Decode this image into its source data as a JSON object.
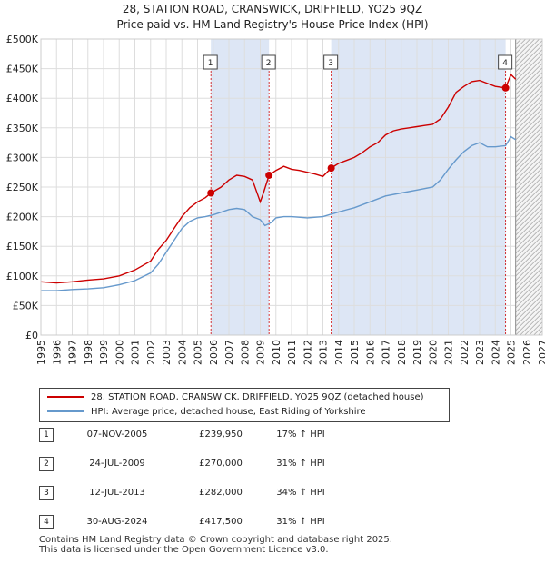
{
  "title_line1": "28, STATION ROAD, CRANSWICK, DRIFFIELD, YO25 9QZ",
  "title_line2": "Price paid vs. HM Land Registry's House Price Index (HPI)",
  "colors": {
    "property": "#cc0000",
    "hpi": "#6699cc",
    "sale_band": "#dde6f5",
    "future_hatch": "#aaaaaa",
    "grid": "#dddddd"
  },
  "legend": {
    "property_label": "28, STATION ROAD, CRANSWICK, DRIFFIELD, YO25 9QZ (detached house)",
    "hpi_label": "HPI: Average price, detached house, East Riding of Yorkshire"
  },
  "sales": [
    {
      "num": "1",
      "date": "07-NOV-2005",
      "price": "£239,950",
      "hpi": "17% ↑ HPI"
    },
    {
      "num": "2",
      "date": "24-JUL-2009",
      "price": "£270,000",
      "hpi": "31% ↑ HPI"
    },
    {
      "num": "3",
      "date": "12-JUL-2013",
      "price": "£282,000",
      "hpi": "34% ↑ HPI"
    },
    {
      "num": "4",
      "date": "30-AUG-2024",
      "price": "£417,500",
      "hpi": "31% ↑ HPI"
    }
  ],
  "footer_line1": "Contains HM Land Registry data © Crown copyright and database right 2025.",
  "footer_line2": "This data is licensed under the Open Government Licence v3.0.",
  "chart_data": {
    "type": "line",
    "title": "Price paid vs. HM Land Registry's House Price Index (HPI)",
    "xlim": [
      1995,
      2027
    ],
    "ylim": [
      0,
      500000
    ],
    "x_ticks": [
      1995,
      1996,
      1997,
      1998,
      1999,
      2000,
      2001,
      2002,
      2003,
      2004,
      2005,
      2006,
      2007,
      2008,
      2009,
      2010,
      2011,
      2012,
      2013,
      2014,
      2015,
      2016,
      2017,
      2018,
      2019,
      2020,
      2021,
      2022,
      2023,
      2024,
      2025,
      2026,
      2027
    ],
    "y_ticks": [
      {
        "value": 0,
        "label": "£0"
      },
      {
        "value": 50000,
        "label": "£50K"
      },
      {
        "value": 100000,
        "label": "£100K"
      },
      {
        "value": 150000,
        "label": "£150K"
      },
      {
        "value": 200000,
        "label": "£200K"
      },
      {
        "value": 250000,
        "label": "£250K"
      },
      {
        "value": 300000,
        "label": "£300K"
      },
      {
        "value": 350000,
        "label": "£350K"
      },
      {
        "value": 400000,
        "label": "£400K"
      },
      {
        "value": 450000,
        "label": "£450K"
      },
      {
        "value": 500000,
        "label": "£500K"
      }
    ],
    "sale_markers": [
      {
        "num": "1",
        "x": 2005.85,
        "y": 239950
      },
      {
        "num": "2",
        "x": 2009.56,
        "y": 270000
      },
      {
        "num": "3",
        "x": 2013.53,
        "y": 282000
      },
      {
        "num": "4",
        "x": 2024.66,
        "y": 417500
      }
    ],
    "future_start": 2025.3,
    "series": [
      {
        "name": "28, STATION ROAD, CRANSWICK, DRIFFIELD, YO25 9QZ (detached house)",
        "x": [
          1995,
          1996,
          1997,
          1998,
          1999,
          2000,
          2001,
          2002,
          2002.5,
          2003,
          2003.5,
          2004,
          2004.5,
          2005,
          2005.5,
          2005.85,
          2006.5,
          2007,
          2007.5,
          2008,
          2008.5,
          2009,
          2009.2,
          2009.56,
          2010,
          2010.5,
          2011,
          2011.5,
          2012,
          2012.5,
          2013,
          2013.53,
          2014,
          2014.5,
          2015,
          2015.5,
          2016,
          2016.5,
          2017,
          2017.5,
          2018,
          2018.5,
          2019,
          2019.5,
          2020,
          2020.5,
          2021,
          2021.5,
          2022,
          2022.5,
          2023,
          2023.5,
          2024,
          2024.66,
          2025,
          2025.3
        ],
        "y": [
          90000,
          88000,
          90000,
          93000,
          95000,
          100000,
          110000,
          125000,
          145000,
          160000,
          180000,
          200000,
          215000,
          225000,
          232000,
          239950,
          250000,
          262000,
          270000,
          268000,
          262000,
          225000,
          240000,
          270000,
          278000,
          285000,
          280000,
          278000,
          275000,
          272000,
          268000,
          282000,
          290000,
          295000,
          300000,
          308000,
          318000,
          325000,
          338000,
          345000,
          348000,
          350000,
          352000,
          354000,
          356000,
          365000,
          385000,
          410000,
          420000,
          428000,
          430000,
          425000,
          420000,
          417500,
          440000,
          432000
        ]
      },
      {
        "name": "HPI: Average price, detached house, East Riding of Yorkshire",
        "x": [
          1995,
          1996,
          1997,
          1998,
          1999,
          2000,
          2001,
          2002,
          2002.5,
          2003,
          2003.5,
          2004,
          2004.5,
          2005,
          2005.5,
          2006,
          2007,
          2007.5,
          2008,
          2008.5,
          2009,
          2009.3,
          2009.7,
          2010,
          2010.5,
          2011,
          2012,
          2013,
          2014,
          2015,
          2016,
          2017,
          2018,
          2019,
          2020,
          2020.5,
          2021,
          2021.5,
          2022,
          2022.5,
          2023,
          2023.5,
          2024,
          2024.66,
          2025,
          2025.3
        ],
        "y": [
          75000,
          75000,
          77000,
          78000,
          80000,
          85000,
          92000,
          105000,
          120000,
          140000,
          160000,
          180000,
          192000,
          198000,
          200000,
          203000,
          212000,
          214000,
          212000,
          200000,
          195000,
          185000,
          190000,
          198000,
          200000,
          200000,
          198000,
          200000,
          208000,
          215000,
          225000,
          235000,
          240000,
          245000,
          250000,
          262000,
          280000,
          296000,
          310000,
          320000,
          325000,
          318000,
          318000,
          320000,
          335000,
          330000
        ]
      }
    ]
  }
}
